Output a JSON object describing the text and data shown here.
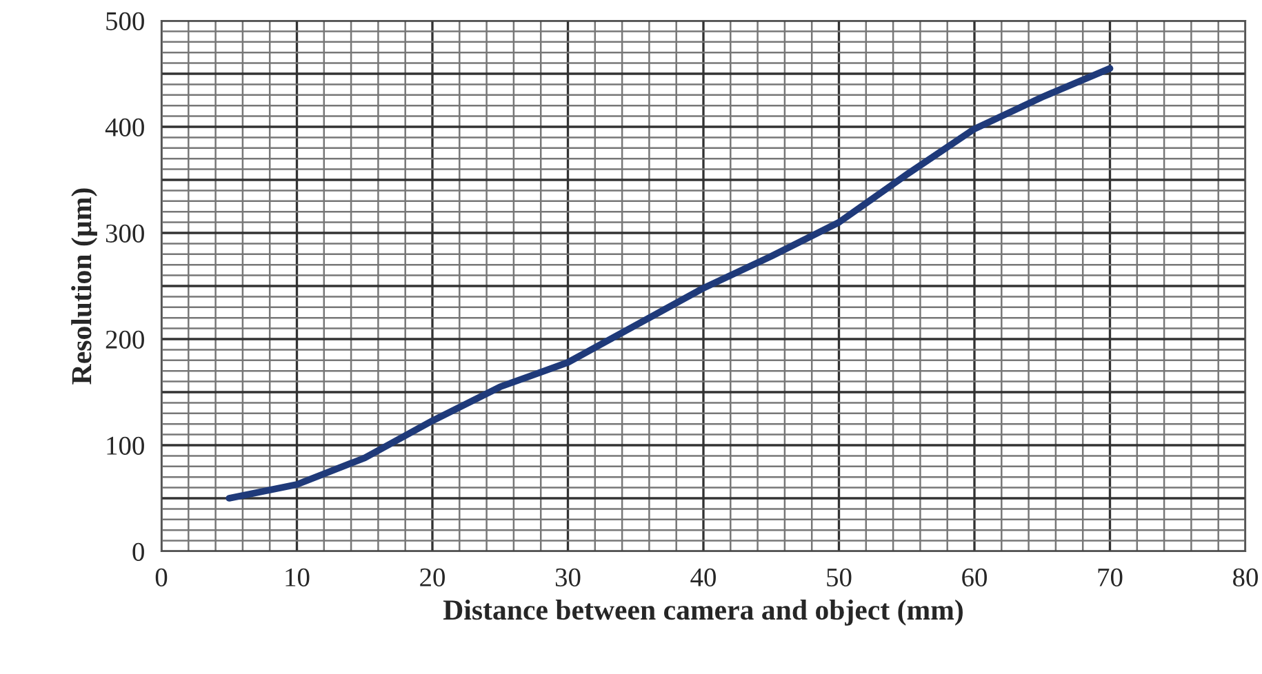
{
  "chart_data": {
    "type": "line",
    "xlabel": "Distance between camera and object (mm)",
    "ylabel": "Resolution (µm)",
    "x": [
      5,
      10,
      15,
      20,
      25,
      30,
      35,
      40,
      45,
      50,
      55,
      60,
      65,
      70
    ],
    "series": [
      {
        "color": "#1f3a7a",
        "values": [
          50,
          63,
          88,
          123,
          155,
          178,
          213,
          248,
          278,
          310,
          355,
          398,
          428,
          455
        ]
      }
    ],
    "xlim": [
      0,
      80
    ],
    "xticks": [
      0,
      10,
      20,
      30,
      40,
      50,
      60,
      70,
      80
    ],
    "ylim": [
      0,
      500
    ],
    "yticks": [
      0,
      {
        "value": 50,
        "label": null
      },
      100,
      {
        "value": 150,
        "label": null
      },
      200,
      {
        "value": 250,
        "label": null
      },
      300,
      {
        "value": 350,
        "label": null
      },
      400,
      {
        "value": 450,
        "label": null
      },
      500
    ],
    "grid": true,
    "marker": "none",
    "line_style": "solid"
  }
}
